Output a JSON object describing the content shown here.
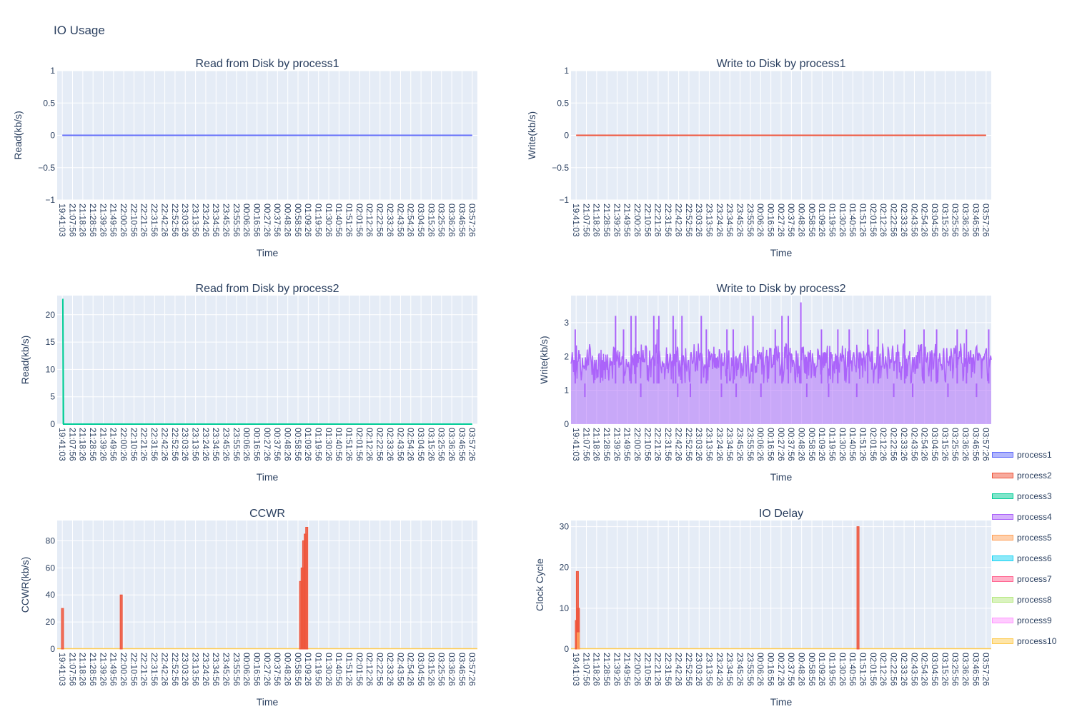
{
  "figure": {
    "title": "IO Usage"
  },
  "time_ticks": [
    "19:41:03",
    "21:07:56",
    "21:18:26",
    "21:28:56",
    "21:39:26",
    "21:49:56",
    "22:00:26",
    "22:10:56",
    "22:21:26",
    "22:31:56",
    "22:42:26",
    "22:52:56",
    "23:03:26",
    "23:13:56",
    "23:24:26",
    "23:34:56",
    "23:45:26",
    "23:55:56",
    "00:06:26",
    "00:16:56",
    "00:27:26",
    "00:37:56",
    "00:48:26",
    "00:58:56",
    "01:09:26",
    "01:19:56",
    "01:30:26",
    "01:40:56",
    "01:51:26",
    "02:01:56",
    "02:12:26",
    "02:22:56",
    "02:33:26",
    "02:43:56",
    "02:54:26",
    "03:04:56",
    "03:15:26",
    "03:25:56",
    "03:36:26",
    "03:46:56",
    "03:57:26"
  ],
  "legend": [
    {
      "name": "process1",
      "color": "#636efa"
    },
    {
      "name": "process2",
      "color": "#ef553b"
    },
    {
      "name": "process3",
      "color": "#00cc96"
    },
    {
      "name": "process4",
      "color": "#ab63fa"
    },
    {
      "name": "process5",
      "color": "#ffa15a"
    },
    {
      "name": "process6",
      "color": "#19d3f3"
    },
    {
      "name": "process7",
      "color": "#ff6692"
    },
    {
      "name": "process8",
      "color": "#b6e880"
    },
    {
      "name": "process9",
      "color": "#ff97ff"
    },
    {
      "name": "process10",
      "color": "#fecb52"
    }
  ],
  "chart_data": [
    {
      "type": "line",
      "title": "Read from Disk by process1",
      "xlabel": "Time",
      "ylabel": "Read(kb/s)",
      "ylim": [
        -1,
        1
      ],
      "yticks": [
        -1,
        -0.5,
        0,
        0.5,
        1
      ],
      "ytick_labels": [
        "−1",
        "−0.5",
        "0",
        "0.5",
        "1"
      ],
      "series": [
        {
          "name": "process1",
          "color": "#636efa",
          "fill": false,
          "points": [
            [
              0,
              0
            ],
            [
              40,
              0
            ]
          ]
        }
      ]
    },
    {
      "type": "line",
      "title": "Write to Disk by process1",
      "xlabel": "Time",
      "ylabel": "Write(kb/s)",
      "ylim": [
        -1,
        1
      ],
      "yticks": [
        -1,
        -0.5,
        0,
        0.5,
        1
      ],
      "ytick_labels": [
        "−1",
        "−0.5",
        "0",
        "0.5",
        "1"
      ],
      "series": [
        {
          "name": "process2",
          "color": "#ef553b",
          "fill": false,
          "points": [
            [
              0,
              0
            ],
            [
              40,
              0
            ]
          ]
        }
      ]
    },
    {
      "type": "area",
      "title": "Read from Disk by process2",
      "xlabel": "Time",
      "ylabel": "Read(kb/s)",
      "ylim": [
        0,
        23.5
      ],
      "yticks": [
        0,
        5,
        10,
        15,
        20
      ],
      "ytick_labels": [
        "0",
        "5",
        "10",
        "15",
        "20"
      ],
      "series": [
        {
          "name": "process3",
          "color": "#00cc96",
          "fill": true,
          "points": [
            [
              0,
              22.8
            ],
            [
              0.05,
              22.8
            ],
            [
              0.12,
              0
            ],
            [
              40,
              0
            ]
          ]
        }
      ]
    },
    {
      "type": "area",
      "title": "Write to Disk by process2",
      "xlabel": "Time",
      "ylabel": "Write(kb/s)",
      "ylim": [
        0,
        3.8
      ],
      "yticks": [
        0,
        1,
        2,
        3
      ],
      "ytick_labels": [
        "0",
        "1",
        "2",
        "3"
      ],
      "series": [
        {
          "name": "process4",
          "color": "#ab63fa",
          "fill": true,
          "generator": "noisy",
          "base": 1.9,
          "band_low": 1.2,
          "band_high": 2.4,
          "spikes": [
            [
              1.0,
              2.8
            ],
            [
              3.3,
              0.8
            ],
            [
              10.6,
              3.2
            ],
            [
              12.5,
              2.8
            ],
            [
              14.3,
              3.2
            ],
            [
              15.4,
              3.2
            ],
            [
              16.6,
              0.8
            ],
            [
              19.7,
              3.2
            ],
            [
              20.5,
              2.8
            ],
            [
              20.9,
              3.2
            ],
            [
              24.3,
              3.2
            ],
            [
              24.9,
              2.8
            ],
            [
              25.4,
              0.8
            ],
            [
              26.4,
              3.2
            ],
            [
              28.4,
              0.8
            ],
            [
              31.0,
              3.2
            ],
            [
              32.2,
              2.8
            ],
            [
              35.8,
              0.8
            ],
            [
              37.1,
              2.8
            ],
            [
              38.6,
              2.8
            ],
            [
              39.3,
              0.8
            ],
            [
              43.3,
              3.2
            ],
            [
              45.2,
              0.8
            ],
            [
              48.6,
              2.8
            ],
            [
              50.2,
              3.2
            ],
            [
              51.7,
              3.2
            ],
            [
              54.7,
              3.6
            ],
            [
              56.1,
              0.8
            ],
            [
              59.6,
              2.8
            ],
            [
              61.3,
              0.8
            ],
            [
              63.5,
              2.8
            ],
            [
              66.2,
              2.8
            ],
            [
              68.0,
              0.8
            ],
            [
              70.6,
              2.8
            ],
            [
              73.1,
              2.8
            ],
            [
              76.8,
              0.8
            ],
            [
              79.4,
              2.8
            ],
            [
              81.3,
              0.8
            ],
            [
              84.0,
              2.8
            ],
            [
              87.0,
              2.8
            ],
            [
              89.7,
              0.8
            ],
            [
              91.9,
              2.8
            ],
            [
              94.1,
              2.8
            ],
            [
              96.5,
              0.8
            ],
            [
              99.4,
              2.8
            ]
          ],
          "end": 0.4
        }
      ]
    },
    {
      "type": "bar",
      "title": "CCWR",
      "xlabel": "Time",
      "ylabel": "CCWR(kb/s)",
      "ylim": [
        0,
        95
      ],
      "yticks": [
        0,
        20,
        40,
        60,
        80
      ],
      "ytick_labels": [
        "0",
        "20",
        "40",
        "60",
        "80"
      ],
      "baseline_color": "#fecb52",
      "series": [
        {
          "name": "process2",
          "color": "#ef553b",
          "fill": true,
          "spikes": [
            [
              0.02,
              30
            ],
            [
              5.75,
              40
            ],
            [
              23.25,
              50
            ],
            [
              23.4,
              60
            ],
            [
              23.55,
              80
            ],
            [
              23.7,
              85
            ],
            [
              23.85,
              90
            ]
          ]
        }
      ]
    },
    {
      "type": "bar",
      "title": "IO Delay",
      "xlabel": "Time",
      "ylabel": "Clock Cycle",
      "ylim": [
        0,
        31.5
      ],
      "yticks": [
        0,
        10,
        20,
        30
      ],
      "ytick_labels": [
        "0",
        "10",
        "20",
        "30"
      ],
      "baseline_color": "#fecb52",
      "series": [
        {
          "name": "process2",
          "color": "#ef553b",
          "fill": true,
          "spikes": [
            [
              0.02,
              7
            ],
            [
              0.12,
              19
            ],
            [
              0.22,
              10
            ],
            [
              27.5,
              30
            ]
          ]
        },
        {
          "name": "process5",
          "color": "#ffa15a",
          "fill": true,
          "spikes": [
            [
              0.2,
              4
            ]
          ]
        }
      ]
    }
  ]
}
